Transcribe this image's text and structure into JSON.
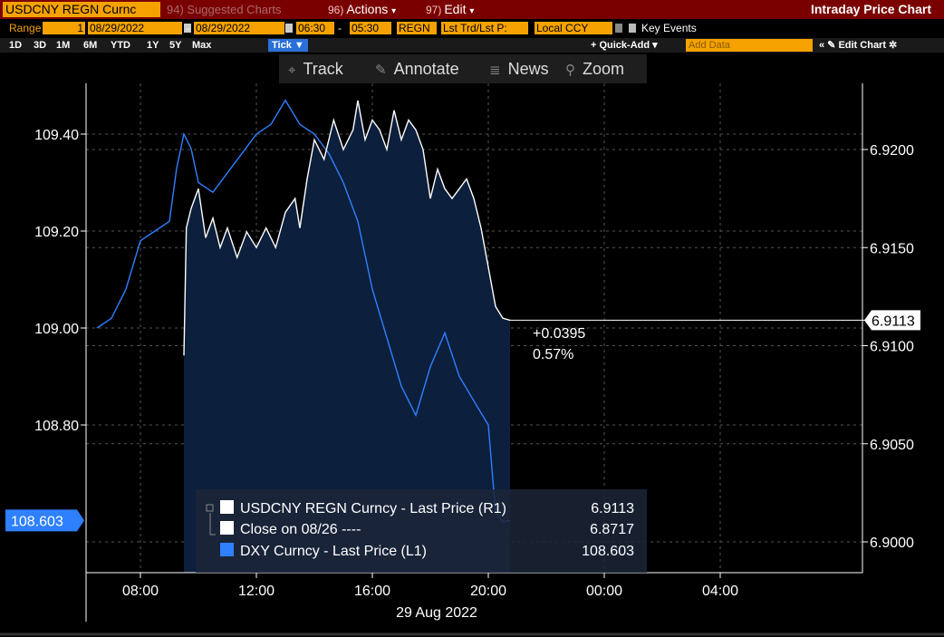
{
  "header": {
    "ticker": "USDCNY REGN Curnc",
    "suggested": "94) Suggested Charts",
    "actions": {
      "num": "96)",
      "label": "Actions"
    },
    "edit": {
      "num": "97)",
      "label": "Edit"
    },
    "title": "Intraday Price Chart"
  },
  "range_bar": {
    "range_label": "Range",
    "range_value": "1",
    "start_date": "08/29/2022",
    "end_date": "08/29/2022",
    "start_time": "06:30",
    "end_time": "05:30",
    "market": "REGN",
    "price_type": "Lst Trd/Lst P:",
    "currency": "Local CCY",
    "key_events": "Key Events"
  },
  "period_bar": {
    "periods": [
      "1D",
      "3D",
      "1M",
      "6M",
      "YTD",
      "1Y",
      "5Y",
      "Max"
    ],
    "tick_label": "Tick ▼",
    "quick_add": "+ Quick-Add ▾",
    "add_data_placeholder": "Add Data",
    "edit_chart": "« ✎ Edit Chart ✲"
  },
  "toolbar": {
    "track": "Track",
    "annotate": "Annotate",
    "news": "News",
    "zoom": "Zoom"
  },
  "colors": {
    "usdcny": "#ffffff",
    "dxy": "#2f80ff",
    "fill": "#0c1f3c",
    "accent": "#f5a200"
  },
  "chart_data": {
    "type": "line",
    "xlabel": "29 Aug 2022",
    "x_ticks": [
      "08:00",
      "12:00",
      "16:00",
      "20:00",
      "00:00",
      "04:00"
    ],
    "y_left": {
      "ticks": [
        "109.40",
        "109.20",
        "109.00",
        "108.80"
      ],
      "range": [
        108.55,
        109.55
      ]
    },
    "y_right": {
      "ticks": [
        "6.9200",
        "6.9150",
        "6.9100",
        "6.9050",
        "6.9000"
      ],
      "range": [
        6.8985,
        6.9245
      ]
    },
    "last_left": "108.603",
    "last_right": "6.9113",
    "change": "+0.0395",
    "change_pct": "0.57%",
    "series": [
      {
        "name": "USDCNY REGN Curncy - Last Price (R1)",
        "axis": "right",
        "last": "6.9113",
        "x": [
          "09:30",
          "09:35",
          "09:45",
          "10:00",
          "10:15",
          "10:30",
          "10:45",
          "11:00",
          "11:20",
          "11:40",
          "12:00",
          "12:20",
          "12:40",
          "13:00",
          "13:20",
          "13:30",
          "13:45",
          "14:00",
          "14:20",
          "14:40",
          "15:00",
          "15:20",
          "15:30",
          "15:45",
          "16:00",
          "16:15",
          "16:30",
          "16:45",
          "17:00",
          "17:15",
          "17:30",
          "17:45",
          "18:00",
          "18:15",
          "18:30",
          "18:45",
          "19:00",
          "19:15",
          "19:30",
          "19:45",
          "20:00",
          "20:15",
          "20:30",
          "20:45"
        ],
        "y": [
          6.9095,
          6.916,
          6.917,
          6.918,
          6.9155,
          6.9165,
          6.915,
          6.916,
          6.9145,
          6.9158,
          6.915,
          6.916,
          6.915,
          6.9168,
          6.9175,
          6.916,
          6.9185,
          6.9205,
          6.9195,
          6.9215,
          6.92,
          6.921,
          6.9225,
          6.9205,
          6.9215,
          6.921,
          6.92,
          6.922,
          6.9205,
          6.9215,
          6.921,
          6.92,
          6.9175,
          6.919,
          6.918,
          6.9175,
          6.918,
          6.9185,
          6.9175,
          6.916,
          6.914,
          6.912,
          6.9114,
          6.9113
        ]
      },
      {
        "name": "Close on 08/26 ----",
        "axis": "right",
        "last": "6.8717"
      },
      {
        "name": "DXY Curncy - Last Price (L1)",
        "axis": "left",
        "last": "108.603",
        "x": [
          "06:30",
          "07:00",
          "07:30",
          "08:00",
          "08:30",
          "09:00",
          "09:15",
          "09:30",
          "09:45",
          "10:00",
          "10:30",
          "11:00",
          "11:30",
          "12:00",
          "12:30",
          "13:00",
          "13:30",
          "14:00",
          "14:30",
          "15:00",
          "15:30",
          "16:00",
          "16:30",
          "17:00",
          "17:30",
          "18:00",
          "18:30",
          "19:00",
          "19:30",
          "20:00",
          "20:15",
          "20:30",
          "20:45"
        ],
        "y": [
          109.0,
          109.02,
          109.08,
          109.18,
          109.2,
          109.22,
          109.33,
          109.4,
          109.37,
          109.3,
          109.28,
          109.32,
          109.36,
          109.4,
          109.42,
          109.47,
          109.42,
          109.4,
          109.36,
          109.3,
          109.22,
          109.08,
          108.98,
          108.88,
          108.82,
          108.92,
          108.99,
          108.9,
          108.85,
          108.8,
          108.62,
          108.6,
          108.603
        ]
      }
    ]
  }
}
